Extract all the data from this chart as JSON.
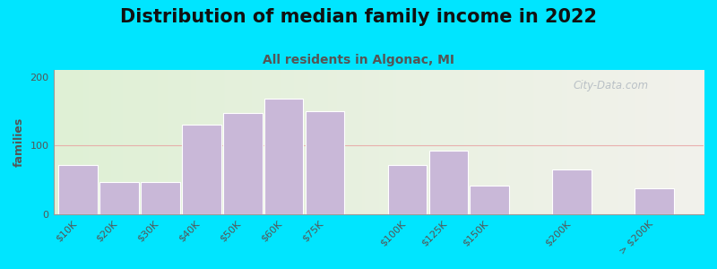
{
  "title": "Distribution of median family income in 2022",
  "subtitle": "All residents in Algonac, MI",
  "ylabel": "families",
  "categories": [
    "$10K",
    "$20K",
    "$30K",
    "$40K",
    "$50K",
    "$60K",
    "$75K",
    "$100K",
    "$125K",
    "$150K",
    "$200K",
    "> $200K"
  ],
  "values": [
    72,
    47,
    47,
    130,
    148,
    168,
    150,
    72,
    93,
    42,
    65,
    38
  ],
  "bar_color": "#c9b8d8",
  "bar_edge_color": "#ffffff",
  "ylim": [
    0,
    210
  ],
  "yticks": [
    0,
    100,
    200
  ],
  "background_outer": "#00e5ff",
  "background_left": "#dff0d5",
  "background_right": "#f2f2ec",
  "hline_color": "#e8a0a0",
  "title_fontsize": 15,
  "subtitle_fontsize": 10,
  "ylabel_fontsize": 9,
  "tick_fontsize": 8,
  "watermark": "City-Data.com",
  "watermark_color": "#b0b8c0"
}
